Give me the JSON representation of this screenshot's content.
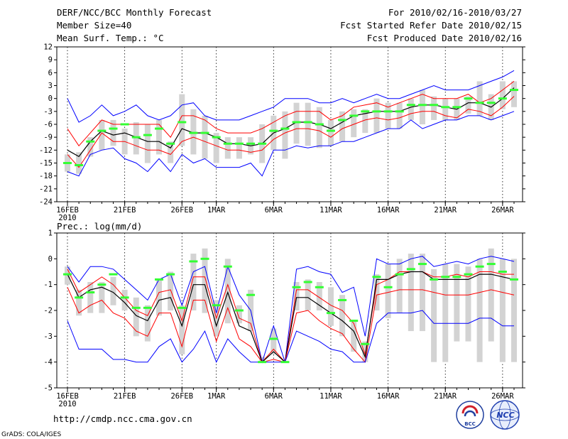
{
  "header": {
    "title": "DERF/NCC/BCC Monthly Forecast",
    "member_size": "Member Size=40",
    "variable": "Mean Surf. Temp.: °C",
    "period": "For 2010/02/16-2010/03/27",
    "started": "Fcst Started Refer Date 2010/02/15",
    "produced": "Fcst Produced Date 2010/02/16"
  },
  "footer": {
    "url": "http://cmdp.ncc.cma.gov.cn",
    "credit": "GrADS: COLA/IGES",
    "logo_bcc": "BCC",
    "logo_ncc": "NCC"
  },
  "colors": {
    "envelope": "#0000ff",
    "spread": "#ff0000",
    "mean": "#000000",
    "box": "#d3d3d3",
    "median": "#33ff33"
  },
  "chart_data": [
    {
      "type": "line",
      "title": "Mean Surf. Temp.: °C",
      "x_tick_labels": [
        "16FEB",
        "21FEB",
        "26FEB",
        "1MAR",
        "6MAR",
        "11MAR",
        "16MAR",
        "21MAR",
        "26MAR"
      ],
      "x_tick_index": [
        0,
        5,
        10,
        13,
        18,
        23,
        28,
        33,
        38
      ],
      "x_year_label": "2010",
      "ylim": [
        -24,
        12
      ],
      "yticks": [
        -24,
        -21,
        -18,
        -15,
        -12,
        -9,
        -6,
        -3,
        0,
        3,
        6,
        9,
        12
      ],
      "days": 40,
      "series": [
        {
          "name": "max",
          "color": "#0000ff",
          "values": [
            0,
            -5.5,
            -4,
            -1.5,
            -4,
            -3,
            -1.5,
            -4,
            -5,
            -4,
            -1.5,
            -1,
            -4,
            -5,
            -5,
            -5,
            -4,
            -3,
            -2,
            0,
            0,
            0,
            -1,
            -1,
            0,
            -1,
            0,
            1,
            0,
            0,
            1,
            2,
            3,
            2,
            2,
            2,
            3,
            4,
            5,
            6.5
          ]
        },
        {
          "name": "upper",
          "color": "#ff0000",
          "values": [
            -7,
            -11,
            -8,
            -5,
            -6,
            -6,
            -6,
            -6,
            -6,
            -9,
            -4,
            -4,
            -5,
            -7,
            -8,
            -8,
            -8,
            -7,
            -5.5,
            -4,
            -3,
            -3,
            -3,
            -5,
            -4,
            -2,
            -1.5,
            -1,
            -2,
            -1,
            0,
            1,
            0,
            0,
            0,
            1,
            -1,
            0,
            2,
            4
          ]
        },
        {
          "name": "mean",
          "color": "#000000",
          "values": [
            -12,
            -13.5,
            -10,
            -7.5,
            -8.5,
            -8,
            -9,
            -10,
            -10,
            -11.5,
            -7,
            -8,
            -8,
            -9,
            -10.5,
            -10.5,
            -11,
            -10.5,
            -8,
            -7,
            -5.5,
            -5.5,
            -6,
            -7,
            -5.5,
            -4,
            -3.5,
            -3,
            -3,
            -3,
            -2,
            -1.5,
            -1.5,
            -2,
            -2.5,
            -1,
            -1,
            -2,
            0,
            2.5
          ]
        },
        {
          "name": "lower",
          "color": "#ff0000",
          "values": [
            -13,
            -16,
            -12,
            -8,
            -10,
            -10,
            -11,
            -12,
            -12,
            -13,
            -10,
            -9,
            -10,
            -11,
            -12,
            -12,
            -12.5,
            -12,
            -9.5,
            -8,
            -7,
            -7,
            -7.5,
            -9,
            -7,
            -6,
            -5,
            -4.5,
            -5,
            -4.5,
            -3.5,
            -3,
            -3,
            -4,
            -4.5,
            -2.5,
            -3,
            -4,
            -2,
            0.5
          ]
        },
        {
          "name": "min",
          "color": "#0000ff",
          "values": [
            -17,
            -18,
            -13,
            -12,
            -11.5,
            -14,
            -15,
            -17,
            -14,
            -17,
            -13,
            -15,
            -14,
            -16,
            -16,
            -16,
            -15,
            -18,
            -12,
            -12,
            -11,
            -11.5,
            -11,
            -11,
            -10,
            -10,
            -9,
            -8,
            -7,
            -7,
            -5,
            -7,
            -6,
            -5,
            -5,
            -4,
            -4,
            -5,
            -4,
            -3
          ]
        }
      ],
      "box_low": [
        -17,
        -17.5,
        -13.5,
        -12,
        -11,
        -13,
        -13,
        -15,
        -13,
        -15,
        -11,
        -13,
        -14,
        -15,
        -14,
        -14,
        -13,
        -15,
        -12,
        -14,
        -10.5,
        -11,
        -11.5,
        -11,
        -10,
        -9,
        -8,
        -8,
        -7,
        -7,
        -5,
        -6,
        -5,
        -5,
        -5,
        -3.5,
        -4,
        -5,
        -2.5,
        -2
      ],
      "box_high": [
        -13,
        -12.5,
        -9,
        -5,
        -5,
        -7,
        -5.5,
        -6,
        -5,
        -10,
        1,
        -2.5,
        -4,
        -8,
        -9,
        -9,
        -9,
        -6,
        -4,
        -3,
        -1,
        -1,
        -2,
        -5,
        -3,
        -2.5,
        -2.5,
        0,
        -1,
        -1,
        0,
        2,
        0.5,
        0,
        0,
        0.5,
        4,
        1,
        4,
        4
      ],
      "median": [
        -15,
        -15.5,
        -10,
        -7.5,
        -7,
        -6,
        -9,
        -8.5,
        -7,
        -10.5,
        -5.5,
        -8,
        -8,
        -9,
        -10.5,
        -10.5,
        -10.5,
        -10.5,
        -7.5,
        -7,
        -5.5,
        -5.5,
        -6,
        -7.5,
        -5,
        -4,
        -3,
        -3,
        -3,
        -3,
        -1.5,
        -1.5,
        -1.5,
        -2,
        -2,
        0,
        -1,
        -1,
        0,
        2
      ]
    },
    {
      "type": "line",
      "title": "Prec.: log(mm/d)",
      "x_tick_labels": [
        "16FEB",
        "21FEB",
        "26FEB",
        "1MAR",
        "6MAR",
        "11MAR",
        "16MAR",
        "21MAR",
        "26MAR"
      ],
      "x_tick_index": [
        0,
        5,
        10,
        13,
        18,
        23,
        28,
        33,
        38
      ],
      "x_year_label": "2010",
      "ylim": [
        -5,
        1
      ],
      "yticks": [
        -5,
        -4,
        -3,
        -2,
        -1,
        0,
        1
      ],
      "days": 40,
      "series": [
        {
          "name": "max",
          "color": "#0000ff",
          "values": [
            -0.3,
            -0.9,
            -0.3,
            -0.3,
            -0.4,
            -0.8,
            -1.2,
            -1.6,
            -0.8,
            -0.6,
            -1.8,
            -0.5,
            -0.3,
            -2.1,
            -0.3,
            -1.4,
            -2.0,
            -4.0,
            -2.6,
            -4.0,
            -0.4,
            -0.3,
            -0.5,
            -0.6,
            -1.3,
            -1.1,
            -3.0,
            0.0,
            -0.2,
            -0.2,
            0.0,
            0.1,
            -0.3,
            -0.2,
            -0.1,
            -0.2,
            0.0,
            0.1,
            0.0,
            -0.1
          ]
        },
        {
          "name": "upper",
          "color": "#ff0000",
          "values": [
            -0.4,
            -1.3,
            -1.0,
            -0.7,
            -1.0,
            -1.5,
            -2.0,
            -2.2,
            -1.3,
            -1.2,
            -2.4,
            -0.7,
            -0.7,
            -2.3,
            -1.0,
            -2.3,
            -2.5,
            -4.0,
            -3.5,
            -4.0,
            -1.2,
            -1.2,
            -1.5,
            -1.8,
            -2.0,
            -2.5,
            -3.7,
            -1.0,
            -0.8,
            -0.5,
            -0.5,
            -0.5,
            -0.7,
            -0.7,
            -0.6,
            -0.7,
            -0.5,
            -0.5,
            -0.6,
            -0.6
          ]
        },
        {
          "name": "mean",
          "color": "#000000",
          "values": [
            -0.6,
            -1.5,
            -1.2,
            -1.1,
            -1.3,
            -1.7,
            -2.2,
            -2.4,
            -1.6,
            -1.5,
            -2.6,
            -1.0,
            -1.0,
            -2.6,
            -1.3,
            -2.6,
            -2.8,
            -4.0,
            -3.6,
            -4.0,
            -1.5,
            -1.5,
            -1.8,
            -2.1,
            -2.4,
            -2.8,
            -3.8,
            -0.8,
            -0.8,
            -0.6,
            -0.5,
            -0.5,
            -0.8,
            -0.8,
            -0.8,
            -0.8,
            -0.6,
            -0.6,
            -0.7,
            -0.8
          ]
        },
        {
          "name": "lower",
          "color": "#ff0000",
          "values": [
            -1.1,
            -2.1,
            -1.8,
            -1.6,
            -2.1,
            -2.3,
            -2.8,
            -3.0,
            -2.1,
            -2.1,
            -3.4,
            -1.6,
            -1.6,
            -3.2,
            -1.9,
            -3.1,
            -3.4,
            -4.0,
            -3.9,
            -4.0,
            -2.1,
            -2.0,
            -2.4,
            -2.7,
            -2.9,
            -3.5,
            -4.0,
            -1.4,
            -1.3,
            -1.2,
            -1.2,
            -1.2,
            -1.3,
            -1.4,
            -1.4,
            -1.4,
            -1.3,
            -1.2,
            -1.3,
            -1.4
          ]
        },
        {
          "name": "min",
          "color": "#0000ff",
          "values": [
            -2.4,
            -3.5,
            -3.5,
            -3.5,
            -3.9,
            -3.9,
            -4.0,
            -4.0,
            -3.4,
            -3.1,
            -4.0,
            -3.5,
            -2.8,
            -4.0,
            -3.1,
            -3.6,
            -4.0,
            -4.0,
            -4.0,
            -4.0,
            -2.8,
            -3.0,
            -3.2,
            -3.5,
            -3.6,
            -4.0,
            -4.0,
            -2.5,
            -2.1,
            -2.1,
            -2.1,
            -2.0,
            -2.5,
            -2.5,
            -2.5,
            -2.5,
            -2.3,
            -2.3,
            -2.6,
            -2.6
          ]
        }
      ],
      "box_low": [
        -1.0,
        -2.2,
        -2.1,
        -2.1,
        -1.8,
        -2.0,
        -3.0,
        -3.2,
        -2.2,
        -2.0,
        -3.7,
        -2.0,
        -2.1,
        -3.0,
        -2.5,
        -2.5,
        -2.8,
        -4.0,
        -3.7,
        -4.0,
        -2.0,
        -2.0,
        -2.0,
        -2.6,
        -3.0,
        -3.6,
        -4.0,
        -2.0,
        -2.3,
        -2.1,
        -2.8,
        -2.8,
        -4.0,
        -4.0,
        -3.2,
        -3.2,
        -4.0,
        -3.2,
        -4.0,
        -4.0
      ],
      "box_high": [
        -0.3,
        -1.2,
        -0.9,
        -0.9,
        -0.7,
        -1.2,
        -1.5,
        -1.8,
        -0.8,
        -0.5,
        -1.8,
        0.2,
        0.4,
        -1.6,
        0.0,
        -1.8,
        -1.2,
        -3.8,
        -2.7,
        -4.0,
        -0.9,
        -0.8,
        -0.9,
        -1.1,
        -1.4,
        -2.4,
        -3.2,
        -0.6,
        -0.2,
        0.0,
        0.2,
        0.2,
        -0.4,
        -0.2,
        -0.2,
        -0.3,
        0.0,
        0.4,
        0.0,
        0.0
      ],
      "median": [
        -0.6,
        -1.5,
        -1.3,
        -1.0,
        -0.6,
        -1.5,
        -1.9,
        -1.9,
        -0.8,
        -0.6,
        -1.9,
        -0.1,
        0.0,
        -1.8,
        -0.3,
        -2.0,
        -1.4,
        -4.0,
        -3.1,
        -4.0,
        -1.1,
        -0.9,
        -1.1,
        -2.1,
        -1.6,
        -2.4,
        -3.3,
        -0.7,
        -1.1,
        -0.6,
        -0.4,
        -0.2,
        -0.8,
        -0.7,
        -0.7,
        -0.6,
        -0.3,
        -0.2,
        -0.5,
        -0.8
      ]
    }
  ]
}
